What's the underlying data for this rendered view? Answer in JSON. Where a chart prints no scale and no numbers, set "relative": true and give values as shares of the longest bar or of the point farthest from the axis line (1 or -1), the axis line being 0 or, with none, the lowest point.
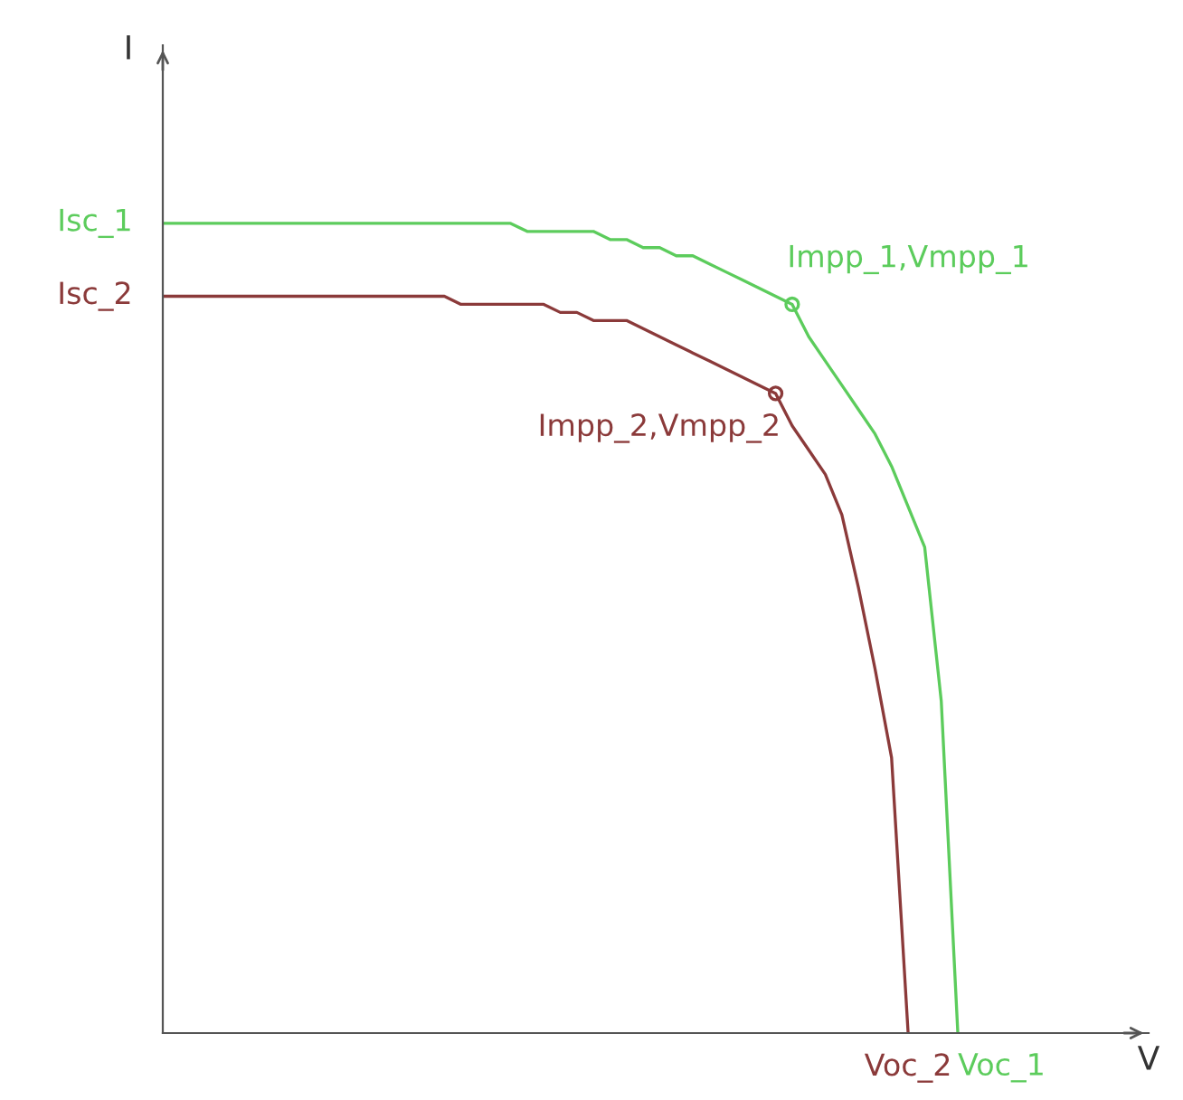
{
  "chart_data": {
    "type": "line",
    "relative": true,
    "categories": [
      null,
      null,
      null,
      null,
      null,
      null,
      null,
      null,
      null,
      null,
      null,
      null,
      null,
      null,
      null,
      null,
      null,
      null,
      null,
      null,
      null,
      null,
      null,
      null,
      null,
      null,
      null,
      null,
      null,
      null,
      null,
      null,
      null,
      null,
      null,
      null,
      null,
      null,
      null,
      null,
      null,
      null,
      null,
      null,
      null,
      null,
      null,
      null,
      null
    ],
    "series": [
      {
        "color": "#5ccc5c",
        "values": [
          1,
          1,
          1,
          1,
          1,
          1,
          1,
          1,
          1,
          1,
          1,
          1,
          1,
          1,
          1,
          1,
          1,
          1,
          1,
          1,
          1,
          1,
          0.99,
          0.99,
          0.99,
          0.99,
          0.99,
          0.98,
          0.98,
          0.97,
          0.97,
          0.96,
          0.96,
          0.95,
          0.94,
          0.93,
          0.92,
          0.91,
          0.9,
          0.86,
          0.83,
          0.8,
          0.77,
          0.74,
          0.7,
          0.65,
          0.6,
          0.41,
          0
        ]
      },
      {
        "color": "#8b3a3a",
        "values": [
          0.91,
          0.91,
          0.91,
          0.91,
          0.91,
          0.91,
          0.91,
          0.91,
          0.91,
          0.91,
          0.91,
          0.91,
          0.91,
          0.91,
          0.91,
          0.91,
          0.91,
          0.91,
          0.9,
          0.9,
          0.9,
          0.9,
          0.9,
          0.9,
          0.89,
          0.89,
          0.88,
          0.88,
          0.88,
          0.87,
          0.86,
          0.85,
          0.84,
          0.83,
          0.82,
          0.81,
          0.8,
          0.79,
          0.75,
          0.72,
          0.69,
          0.64,
          0.55,
          0.45,
          0.34,
          0,
          null,
          null,
          null
        ]
      }
    ],
    "annotations": [
      "Isc_1",
      "Isc_2",
      "Impp_1,Vmpp_1",
      "Impp_2,Vmpp_2",
      "Voc_1",
      "Voc_2",
      "I",
      "V"
    ]
  }
}
